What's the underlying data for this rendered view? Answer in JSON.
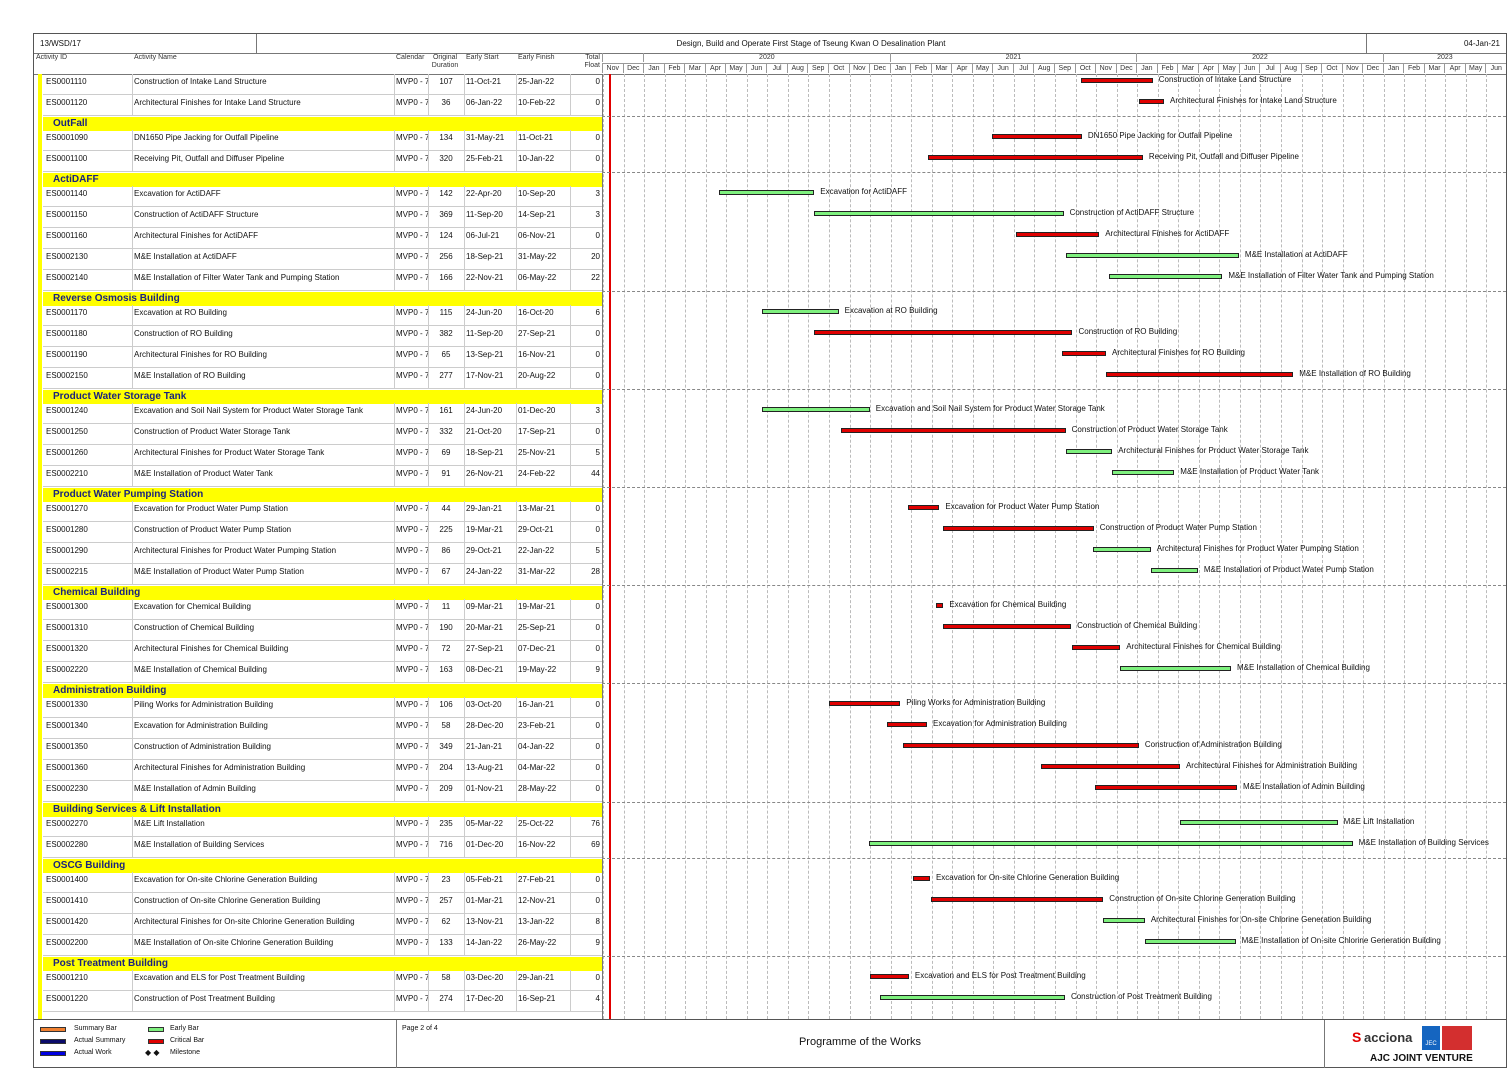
{
  "header": {
    "doc_no": "13/WSD/17",
    "title": "Design, Build and Operate First Stage of Tseung Kwan O Desalination Plant",
    "date": "04-Jan-21"
  },
  "columns": {
    "id": "Activity ID",
    "name": "Activity Name",
    "calendar": "Calendar",
    "duration": "Original Duration",
    "start": "Early Start",
    "finish": "Early Finish",
    "float": "Total Float"
  },
  "years": [
    "2020",
    "2021",
    "2022",
    "2023"
  ],
  "months": [
    "Nov",
    "Dec",
    "Jan",
    "Feb",
    "Mar",
    "Apr",
    "May",
    "Jun",
    "Jul",
    "Aug",
    "Sep",
    "Oct",
    "Nov",
    "Dec",
    "Jan",
    "Feb",
    "Mar",
    "Apr",
    "May",
    "Jun",
    "Jul",
    "Aug",
    "Sep",
    "Oct",
    "Nov",
    "Dec",
    "Jan",
    "Feb",
    "Mar",
    "Apr",
    "May",
    "Jun",
    "Jul",
    "Aug",
    "Sep",
    "Oct",
    "Nov",
    "Dec",
    "Jan",
    "Feb",
    "Mar",
    "Apr",
    "May",
    "Jun"
  ],
  "rows": [
    {
      "t": "a",
      "id": "ES0001110",
      "name": "Construction of Intake Land Structure",
      "cal": "MVP0 - 7",
      "dur": "107",
      "start": "11-Oct-21",
      "finish": "25-Jan-22",
      "float": "0",
      "crit": true
    },
    {
      "t": "a",
      "id": "ES0001120",
      "name": "Architectural Finishes for Intake Land Structure",
      "cal": "MVP0 - 7",
      "dur": "36",
      "start": "06-Jan-22",
      "finish": "10-Feb-22",
      "float": "0",
      "crit": true
    },
    {
      "t": "g",
      "name": "OutFall"
    },
    {
      "t": "a",
      "id": "ES0001090",
      "name": "DN1650 Pipe Jacking for Outfall Pipeline",
      "cal": "MVP0 - 7",
      "dur": "134",
      "start": "31-May-21",
      "finish": "11-Oct-21",
      "float": "0",
      "crit": true
    },
    {
      "t": "a",
      "id": "ES0001100",
      "name": "Receiving Pit, Outfall and Diffuser Pipeline",
      "cal": "MVP0 - 7",
      "dur": "320",
      "start": "25-Feb-21",
      "finish": "10-Jan-22",
      "float": "0",
      "crit": true
    },
    {
      "t": "g",
      "name": "ActiDAFF"
    },
    {
      "t": "a",
      "id": "ES0001140",
      "name": "Excavation for ActiDAFF",
      "cal": "MVP0 - 7",
      "dur": "142",
      "start": "22-Apr-20",
      "finish": "10-Sep-20",
      "float": "3",
      "crit": false
    },
    {
      "t": "a",
      "id": "ES0001150",
      "name": "Construction of ActiDAFF Structure",
      "cal": "MVP0 - 7",
      "dur": "369",
      "start": "11-Sep-20",
      "finish": "14-Sep-21",
      "float": "3",
      "crit": false
    },
    {
      "t": "a",
      "id": "ES0001160",
      "name": "Architectural Finishes for ActiDAFF",
      "cal": "MVP0 - 7",
      "dur": "124",
      "start": "06-Jul-21",
      "finish": "06-Nov-21",
      "float": "0",
      "crit": true
    },
    {
      "t": "a",
      "id": "ES0002130",
      "name": "M&E Installation at ActiDAFF",
      "cal": "MVP0 - 7",
      "dur": "256",
      "start": "18-Sep-21",
      "finish": "31-May-22",
      "float": "20",
      "crit": false
    },
    {
      "t": "a",
      "id": "ES0002140",
      "name": "M&E Installation of Filter Water Tank and Pumping Station",
      "cal": "MVP0 - 7",
      "dur": "166",
      "start": "22-Nov-21",
      "finish": "06-May-22",
      "float": "22",
      "crit": false
    },
    {
      "t": "g",
      "name": "Reverse Osmosis Building"
    },
    {
      "t": "a",
      "id": "ES0001170",
      "name": "Excavation at RO Building",
      "cal": "MVP0 - 7",
      "dur": "115",
      "start": "24-Jun-20",
      "finish": "16-Oct-20",
      "float": "6",
      "crit": false
    },
    {
      "t": "a",
      "id": "ES0001180",
      "name": "Construction of RO Building",
      "cal": "MVP0 - 7",
      "dur": "382",
      "start": "11-Sep-20",
      "finish": "27-Sep-21",
      "float": "0",
      "crit": true
    },
    {
      "t": "a",
      "id": "ES0001190",
      "name": "Architectural Finishes for RO Building",
      "cal": "MVP0 - 7",
      "dur": "65",
      "start": "13-Sep-21",
      "finish": "16-Nov-21",
      "float": "0",
      "crit": true
    },
    {
      "t": "a",
      "id": "ES0002150",
      "name": "M&E Installation of RO Building",
      "cal": "MVP0 - 7",
      "dur": "277",
      "start": "17-Nov-21",
      "finish": "20-Aug-22",
      "float": "0",
      "crit": true
    },
    {
      "t": "g",
      "name": "Product Water Storage Tank"
    },
    {
      "t": "a",
      "id": "ES0001240",
      "name": "Excavation and Soil Nail System for Product Water Storage Tank",
      "cal": "MVP0 - 7",
      "dur": "161",
      "start": "24-Jun-20",
      "finish": "01-Dec-20",
      "float": "3",
      "crit": false
    },
    {
      "t": "a",
      "id": "ES0001250",
      "name": "Construction of Product Water Storage Tank",
      "cal": "MVP0 - 7",
      "dur": "332",
      "start": "21-Oct-20",
      "finish": "17-Sep-21",
      "float": "0",
      "crit": true
    },
    {
      "t": "a",
      "id": "ES0001260",
      "name": "Architectural Finishes for Product Water Storage Tank",
      "cal": "MVP0 - 7",
      "dur": "69",
      "start": "18-Sep-21",
      "finish": "25-Nov-21",
      "float": "5",
      "crit": false
    },
    {
      "t": "a",
      "id": "ES0002210",
      "name": "M&E Installation of Product Water Tank",
      "cal": "MVP0 - 7",
      "dur": "91",
      "start": "26-Nov-21",
      "finish": "24-Feb-22",
      "float": "44",
      "crit": false
    },
    {
      "t": "g",
      "name": "Product Water Pumping Station"
    },
    {
      "t": "a",
      "id": "ES0001270",
      "name": "Excavation for Product Water Pump Station",
      "cal": "MVP0 - 7",
      "dur": "44",
      "start": "29-Jan-21",
      "finish": "13-Mar-21",
      "float": "0",
      "crit": true
    },
    {
      "t": "a",
      "id": "ES0001280",
      "name": "Construction of Product Water Pump Station",
      "cal": "MVP0 - 7",
      "dur": "225",
      "start": "19-Mar-21",
      "finish": "29-Oct-21",
      "float": "0",
      "crit": true
    },
    {
      "t": "a",
      "id": "ES0001290",
      "name": "Architectural Finishes for Product Water Pumping Station",
      "cal": "MVP0 - 7",
      "dur": "86",
      "start": "29-Oct-21",
      "finish": "22-Jan-22",
      "float": "5",
      "crit": false
    },
    {
      "t": "a",
      "id": "ES0002215",
      "name": "M&E Installation of Product Water Pump Station",
      "cal": "MVP0 - 7",
      "dur": "67",
      "start": "24-Jan-22",
      "finish": "31-Mar-22",
      "float": "28",
      "crit": false
    },
    {
      "t": "g",
      "name": "Chemical Building"
    },
    {
      "t": "a",
      "id": "ES0001300",
      "name": "Excavation for Chemical Building",
      "cal": "MVP0 - 7",
      "dur": "11",
      "start": "09-Mar-21",
      "finish": "19-Mar-21",
      "float": "0",
      "crit": true
    },
    {
      "t": "a",
      "id": "ES0001310",
      "name": "Construction of Chemical Building",
      "cal": "MVP0 - 7",
      "dur": "190",
      "start": "20-Mar-21",
      "finish": "25-Sep-21",
      "float": "0",
      "crit": true
    },
    {
      "t": "a",
      "id": "ES0001320",
      "name": "Architectural Finishes for Chemical Building",
      "cal": "MVP0 - 7",
      "dur": "72",
      "start": "27-Sep-21",
      "finish": "07-Dec-21",
      "float": "0",
      "crit": true
    },
    {
      "t": "a",
      "id": "ES0002220",
      "name": "M&E Installation of Chemical Building",
      "cal": "MVP0 - 7",
      "dur": "163",
      "start": "08-Dec-21",
      "finish": "19-May-22",
      "float": "9",
      "crit": false
    },
    {
      "t": "g",
      "name": "Administration Building"
    },
    {
      "t": "a",
      "id": "ES0001330",
      "name": "Piling Works for Administration Building",
      "cal": "MVP0 - 7",
      "dur": "106",
      "start": "03-Oct-20",
      "finish": "16-Jan-21",
      "float": "0",
      "crit": true
    },
    {
      "t": "a",
      "id": "ES0001340",
      "name": "Excavation for Administration Building",
      "cal": "MVP0 - 7",
      "dur": "58",
      "start": "28-Dec-20",
      "finish": "23-Feb-21",
      "float": "0",
      "crit": true
    },
    {
      "t": "a",
      "id": "ES0001350",
      "name": "Construction of Administration Building",
      "cal": "MVP0 - 7",
      "dur": "349",
      "start": "21-Jan-21",
      "finish": "04-Jan-22",
      "float": "0",
      "crit": true
    },
    {
      "t": "a",
      "id": "ES0001360",
      "name": "Architectural Finishes for Administration Building",
      "cal": "MVP0 - 7",
      "dur": "204",
      "start": "13-Aug-21",
      "finish": "04-Mar-22",
      "float": "0",
      "crit": true
    },
    {
      "t": "a",
      "id": "ES0002230",
      "name": "M&E Installation of Admin Building",
      "cal": "MVP0 - 7",
      "dur": "209",
      "start": "01-Nov-21",
      "finish": "28-May-22",
      "float": "0",
      "crit": true
    },
    {
      "t": "g",
      "name": "Building Services & Lift Installation"
    },
    {
      "t": "a",
      "id": "ES0002270",
      "name": "M&E Lift Installation",
      "cal": "MVP0 - 7",
      "dur": "235",
      "start": "05-Mar-22",
      "finish": "25-Oct-22",
      "float": "76",
      "crit": false
    },
    {
      "t": "a",
      "id": "ES0002280",
      "name": "M&E Installation of Building Services",
      "cal": "MVP0 - 7",
      "dur": "716",
      "start": "01-Dec-20",
      "finish": "16-Nov-22",
      "float": "69",
      "crit": false
    },
    {
      "t": "g",
      "name": "OSCG Building"
    },
    {
      "t": "a",
      "id": "ES0001400",
      "name": "Excavation for On-site Chlorine Generation Building",
      "cal": "MVP0 - 7",
      "dur": "23",
      "start": "05-Feb-21",
      "finish": "27-Feb-21",
      "float": "0",
      "crit": true
    },
    {
      "t": "a",
      "id": "ES0001410",
      "name": "Construction of On-site Chlorine Generation Building",
      "cal": "MVP0 - 7",
      "dur": "257",
      "start": "01-Mar-21",
      "finish": "12-Nov-21",
      "float": "0",
      "crit": true
    },
    {
      "t": "a",
      "id": "ES0001420",
      "name": "Architectural Finishes for On-site Chlorine Generation Building",
      "cal": "MVP0 - 7",
      "dur": "62",
      "start": "13-Nov-21",
      "finish": "13-Jan-22",
      "float": "8",
      "crit": false
    },
    {
      "t": "a",
      "id": "ES0002200",
      "name": "M&E Installation of On-site Chlorine Generation Building",
      "cal": "MVP0 - 7",
      "dur": "133",
      "start": "14-Jan-22",
      "finish": "26-May-22",
      "float": "9",
      "crit": false
    },
    {
      "t": "g",
      "name": "Post Treatment Building"
    },
    {
      "t": "a",
      "id": "ES0001210",
      "name": "Excavation and ELS for Post Treatment Building",
      "cal": "MVP0 - 7",
      "dur": "58",
      "start": "03-Dec-20",
      "finish": "29-Jan-21",
      "float": "0",
      "crit": true
    },
    {
      "t": "a",
      "id": "ES0001220",
      "name": "Construction of Post Treatment Building",
      "cal": "MVP0 - 7",
      "dur": "274",
      "start": "17-Dec-20",
      "finish": "16-Sep-21",
      "float": "4",
      "crit": false
    }
  ],
  "legend": {
    "summary": "Summary Bar",
    "actual_summary": "Actual Summary",
    "actual_work": "Actual Work",
    "early": "Early Bar",
    "critical": "Critical Bar",
    "milestone": "Milestone"
  },
  "footer": {
    "page": "Page 2 of 4",
    "title": "Programme of the Works",
    "brand": "acciona",
    "brand2": "JEC",
    "jv": "AJC JOINT VENTURE"
  },
  "colors": {
    "critical": "#e00000",
    "early": "#7ef07e",
    "band": "#ffff00",
    "band_text": "#1a237e",
    "data_date": "#e00000"
  }
}
